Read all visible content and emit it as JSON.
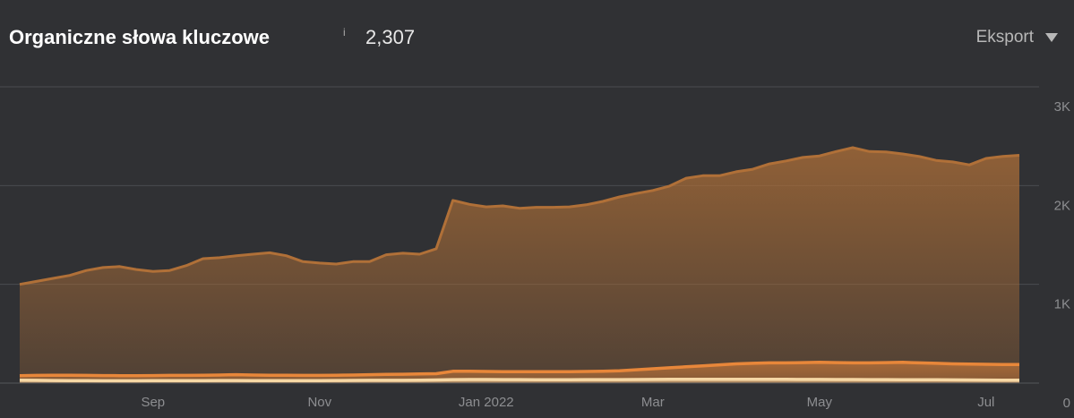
{
  "chart_data": {
    "type": "area",
    "title": "Organiczne słowa kluczowe",
    "info": "i",
    "keyword_count": "2,307",
    "export_label": "Eksport",
    "categories": [
      null,
      null,
      null,
      null,
      null,
      null,
      null,
      null,
      "Sep",
      null,
      null,
      null,
      null,
      null,
      null,
      null,
      null,
      null,
      "Nov",
      null,
      null,
      null,
      null,
      null,
      null,
      null,
      null,
      null,
      "Jan 2022",
      null,
      null,
      null,
      null,
      null,
      null,
      null,
      null,
      null,
      "Mar",
      null,
      null,
      null,
      null,
      null,
      null,
      null,
      null,
      null,
      "May",
      null,
      null,
      null,
      null,
      null,
      null,
      null,
      null,
      null,
      "Jul",
      null,
      null
    ],
    "series": [
      {
        "color": "#b07038",
        "values": [
          1000,
          1030,
          1060,
          1090,
          1140,
          1170,
          1180,
          1150,
          1130,
          1140,
          1190,
          1260,
          1270,
          1290,
          1305,
          1320,
          1290,
          1230,
          1215,
          1205,
          1230,
          1230,
          1300,
          1315,
          1305,
          1360,
          1850,
          1810,
          1785,
          1795,
          1770,
          1780,
          1780,
          1785,
          1805,
          1840,
          1885,
          1920,
          1950,
          1995,
          2075,
          2100,
          2100,
          2140,
          2165,
          2220,
          2250,
          2285,
          2300,
          2345,
          2385,
          2345,
          2340,
          2320,
          2295,
          2255,
          2240,
          2210,
          2275,
          2295,
          2307
        ]
      },
      {
        "color": "#e8873a",
        "values": [
          75,
          78,
          80,
          80,
          78,
          76,
          75,
          75,
          76,
          78,
          78,
          80,
          82,
          85,
          82,
          80,
          80,
          78,
          78,
          80,
          82,
          85,
          88,
          90,
          92,
          95,
          120,
          120,
          118,
          116,
          115,
          115,
          115,
          116,
          118,
          120,
          125,
          135,
          145,
          155,
          165,
          175,
          185,
          195,
          200,
          205,
          205,
          208,
          210,
          208,
          205,
          205,
          208,
          210,
          205,
          200,
          195,
          192,
          190,
          188,
          188
        ]
      },
      {
        "color": "#f6d7a4",
        "values": [
          30,
          28,
          26,
          25,
          25,
          24,
          24,
          24,
          25,
          25,
          25,
          25,
          26,
          26,
          25,
          25,
          25,
          25,
          25,
          26,
          27,
          28,
          28,
          28,
          30,
          32,
          35,
          36,
          36,
          35,
          35,
          34,
          34,
          34,
          35,
          35,
          35,
          36,
          37,
          38,
          38,
          38,
          38,
          38,
          38,
          38,
          38,
          37,
          37,
          36,
          36,
          35,
          35,
          34,
          34,
          34,
          33,
          32,
          31,
          30,
          30
        ]
      }
    ],
    "ylim": [
      0,
      3000
    ],
    "yticks": [
      0,
      {
        "value": 1000,
        "label": "1K"
      },
      {
        "value": 2000,
        "label": "2K"
      },
      {
        "value": 3000,
        "label": "3K"
      }
    ],
    "grid": true
  }
}
